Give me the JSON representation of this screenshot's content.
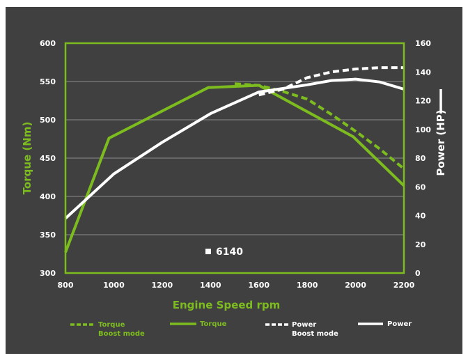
{
  "chart_data": {
    "type": "line",
    "xlabel": "Engine Speed rpm",
    "x_ticks": [
      800,
      1000,
      1200,
      1400,
      1600,
      1800,
      2000,
      2200
    ],
    "xlim": [
      800,
      2200
    ],
    "y_left": {
      "label": "Torque (Nm)",
      "ticks": [
        300,
        350,
        400,
        450,
        500,
        550,
        600
      ],
      "ylim": [
        300,
        600
      ]
    },
    "y_right": {
      "label": "Power (HP)",
      "ticks": [
        0,
        20,
        40,
        60,
        80,
        100,
        120,
        140,
        160
      ],
      "ylim": [
        0,
        160
      ]
    },
    "model_label": "6140",
    "grid": true,
    "series": [
      {
        "name": "Torque Boost mode",
        "legend_lines": [
          "Torque",
          "Boost mode"
        ],
        "axis": "left",
        "style": "dashed",
        "color": "#7dbc1f",
        "points": [
          [
            1500,
            547
          ],
          [
            1600,
            545
          ],
          [
            1700,
            537
          ],
          [
            1800,
            527
          ],
          [
            1900,
            507
          ],
          [
            2000,
            485
          ],
          [
            2100,
            462
          ],
          [
            2200,
            436
          ]
        ]
      },
      {
        "name": "Torque",
        "legend_lines": [
          "Torque"
        ],
        "axis": "left",
        "style": "solid",
        "color": "#7dbc1f",
        "points": [
          [
            800,
            327
          ],
          [
            980,
            476
          ],
          [
            1390,
            542
          ],
          [
            1600,
            545
          ],
          [
            1990,
            478
          ],
          [
            2200,
            414
          ]
        ]
      },
      {
        "name": "Power Boost mode",
        "legend_lines": [
          "Power",
          "Boost mode"
        ],
        "axis": "right",
        "style": "dashed",
        "color": "#ffffff",
        "points": [
          [
            1600,
            124
          ],
          [
            1700,
            128
          ],
          [
            1800,
            136
          ],
          [
            1900,
            140
          ],
          [
            2000,
            142
          ],
          [
            2100,
            143
          ],
          [
            2200,
            143
          ]
        ]
      },
      {
        "name": "Power",
        "legend_lines": [
          "Power"
        ],
        "axis": "right",
        "style": "solid",
        "color": "#ffffff",
        "points": [
          [
            800,
            38
          ],
          [
            1000,
            69
          ],
          [
            1200,
            91
          ],
          [
            1400,
            111
          ],
          [
            1600,
            126
          ],
          [
            1800,
            131
          ],
          [
            1900,
            134
          ],
          [
            2000,
            135
          ],
          [
            2100,
            133
          ],
          [
            2200,
            128
          ]
        ]
      }
    ]
  }
}
